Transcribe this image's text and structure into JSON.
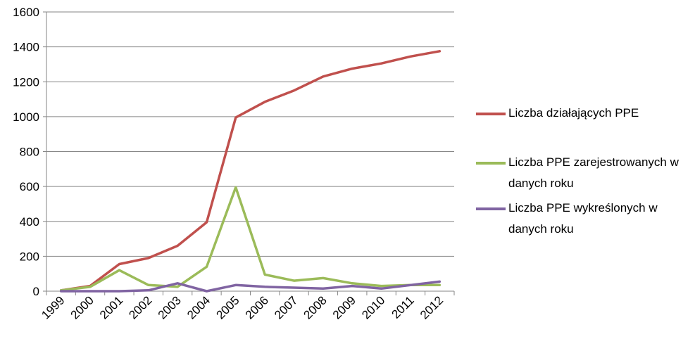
{
  "chart_data": {
    "type": "line",
    "title": "",
    "xlabel": "",
    "ylabel": "",
    "categories": [
      "1999",
      "2000",
      "2001",
      "2002",
      "2003",
      "2004",
      "2005",
      "2006",
      "2007",
      "2008",
      "2009",
      "2010",
      "2011",
      "2012"
    ],
    "ylim": [
      0,
      1600
    ],
    "yticks": [
      "0",
      "200",
      "400",
      "600",
      "800",
      "1000",
      "1200",
      "1400",
      "1600"
    ],
    "grid": true,
    "legend_position": "right",
    "series": [
      {
        "name": "Liczba działających PPE",
        "color": "#c0504d",
        "values": [
          5,
          30,
          155,
          190,
          260,
          395,
          995,
          1085,
          1150,
          1230,
          1275,
          1305,
          1345,
          1375
        ]
      },
      {
        "name": "Liczba PPE zarejestrowanych w danych roku",
        "color": "#9bbb59",
        "values": [
          5,
          25,
          120,
          35,
          25,
          140,
          595,
          95,
          60,
          75,
          45,
          30,
          35,
          35
        ]
      },
      {
        "name": "Liczba PPE wykreślonych w danych roku",
        "color": "#8064a2",
        "values": [
          0,
          0,
          0,
          5,
          45,
          0,
          35,
          25,
          20,
          15,
          30,
          15,
          35,
          55
        ]
      }
    ]
  }
}
